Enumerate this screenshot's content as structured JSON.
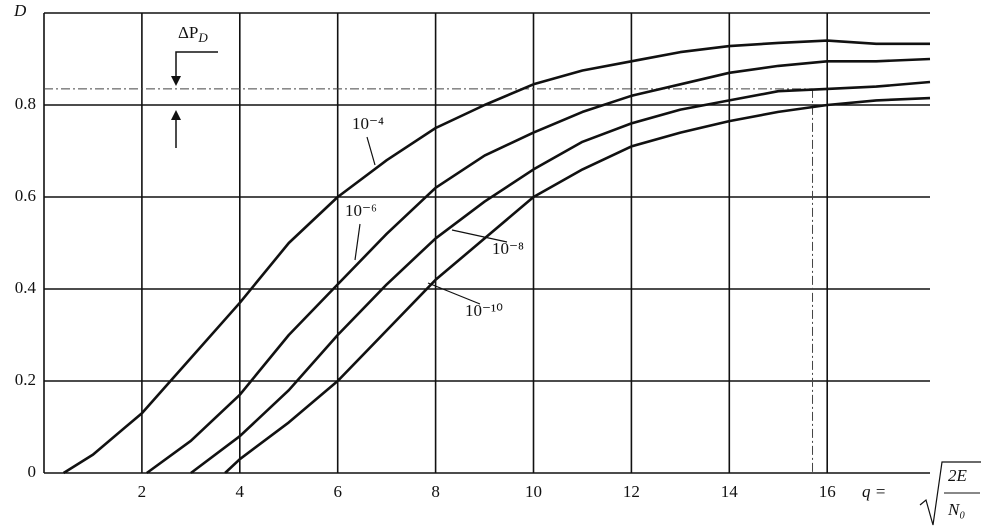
{
  "chart_data": {
    "type": "line",
    "y_label": "D",
    "x_label": {
      "prefix": "q =",
      "numerator": "2E",
      "denominator": "N₀"
    },
    "annotation": "ΔP",
    "annotation_sub": "D",
    "xlim": [
      0,
      18.1
    ],
    "ylim": [
      0,
      1
    ],
    "xticks": [
      2,
      4,
      6,
      8,
      10,
      12,
      14,
      16
    ],
    "yticks": [
      0,
      0.2,
      0.4,
      0.6,
      0.8
    ],
    "grid": true,
    "reference": {
      "D": 0.835,
      "q": 15.7
    },
    "series": [
      {
        "name": "10⁻⁴",
        "color": "#111111",
        "x": [
          0.4,
          1,
          2,
          3,
          4,
          5,
          6,
          7,
          8,
          9,
          10,
          11,
          12,
          13,
          14,
          15,
          16,
          17,
          18.1
        ],
        "values": [
          0,
          0.04,
          0.13,
          0.25,
          0.37,
          0.5,
          0.6,
          0.68,
          0.75,
          0.8,
          0.845,
          0.875,
          0.895,
          0.915,
          0.928,
          0.935,
          0.94,
          0.933,
          0.933
        ]
      },
      {
        "name": "10⁻⁶",
        "color": "#111111",
        "x": [
          2.1,
          3,
          4,
          5,
          6,
          7,
          8,
          9,
          10,
          11,
          12,
          13,
          14,
          15,
          16,
          17,
          18.1
        ],
        "values": [
          0,
          0.07,
          0.17,
          0.3,
          0.41,
          0.52,
          0.62,
          0.69,
          0.74,
          0.785,
          0.82,
          0.845,
          0.87,
          0.885,
          0.895,
          0.895,
          0.9
        ]
      },
      {
        "name": "10⁻⁸",
        "color": "#111111",
        "x": [
          3,
          4,
          5,
          6,
          7,
          8,
          9,
          10,
          11,
          12,
          13,
          14,
          15,
          16,
          17,
          18.1
        ],
        "values": [
          0,
          0.08,
          0.18,
          0.3,
          0.41,
          0.51,
          0.59,
          0.66,
          0.72,
          0.76,
          0.79,
          0.81,
          0.83,
          0.835,
          0.84,
          0.85
        ]
      },
      {
        "name": "10⁻¹⁰",
        "color": "#111111",
        "x": [
          3.7,
          4,
          5,
          6,
          7,
          8,
          9,
          10,
          11,
          12,
          13,
          14,
          15,
          16,
          17,
          18.1
        ],
        "values": [
          0,
          0.03,
          0.11,
          0.2,
          0.31,
          0.42,
          0.51,
          0.6,
          0.66,
          0.71,
          0.74,
          0.765,
          0.785,
          0.8,
          0.81,
          0.815
        ]
      }
    ]
  }
}
